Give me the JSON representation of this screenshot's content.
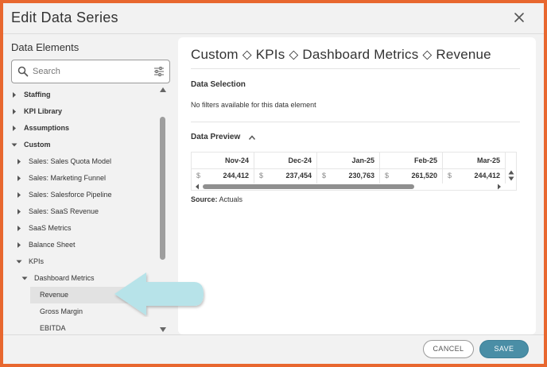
{
  "dialog": {
    "title": "Edit Data Series",
    "close_icon": "close-icon"
  },
  "left_panel": {
    "title": "Data Elements",
    "search": {
      "placeholder": "Search",
      "value": ""
    },
    "tree": [
      {
        "label": "Staffing",
        "level": 0,
        "bold": true,
        "expanded": false
      },
      {
        "label": "KPI Library",
        "level": 0,
        "bold": true,
        "expanded": false
      },
      {
        "label": "Assumptions",
        "level": 0,
        "bold": true,
        "expanded": false
      },
      {
        "label": "Custom",
        "level": 0,
        "bold": true,
        "expanded": true
      },
      {
        "label": "Sales: Sales Quota Model",
        "level": 1,
        "bold": false,
        "expanded": false
      },
      {
        "label": "Sales: Marketing Funnel",
        "level": 1,
        "bold": false,
        "expanded": false
      },
      {
        "label": "Sales: Salesforce Pipeline",
        "level": 1,
        "bold": false,
        "expanded": false
      },
      {
        "label": "Sales: SaaS Revenue",
        "level": 1,
        "bold": false,
        "expanded": false
      },
      {
        "label": "SaaS Metrics",
        "level": 1,
        "bold": false,
        "expanded": false
      },
      {
        "label": "Balance Sheet",
        "level": 1,
        "bold": false,
        "expanded": false
      },
      {
        "label": "KPIs",
        "level": 1,
        "bold": false,
        "expanded": true
      },
      {
        "label": "Dashboard Metrics",
        "level": 2,
        "bold": false,
        "expanded": true
      },
      {
        "label": "Revenue",
        "level": 3,
        "bold": false,
        "leaf": true,
        "selected": true
      },
      {
        "label": "Gross Margin",
        "level": 3,
        "bold": false,
        "leaf": true
      },
      {
        "label": "EBITDA",
        "level": 3,
        "bold": false,
        "leaf": true
      }
    ]
  },
  "right_panel": {
    "breadcrumb": "Custom ⬦ KPIs ⬦ Dashboard Metrics ⬦ Revenue",
    "data_selection_title": "Data Selection",
    "data_selection_text": "No filters available for this data element",
    "data_preview_title": "Data Preview",
    "preview": {
      "columns": [
        "Nov-24",
        "Dec-24",
        "Jan-25",
        "Feb-25",
        "Mar-25"
      ],
      "currency": "$",
      "values": [
        "244,412",
        "237,454",
        "230,763",
        "261,520",
        "244,412"
      ]
    },
    "source_label": "Source:",
    "source_value": "Actuals"
  },
  "footer": {
    "cancel_label": "CANCEL",
    "save_label": "SAVE"
  },
  "colors": {
    "frame": "#e8672f",
    "save_button": "#4a8ea6",
    "pointer_arrow": "#b7e3e9"
  }
}
